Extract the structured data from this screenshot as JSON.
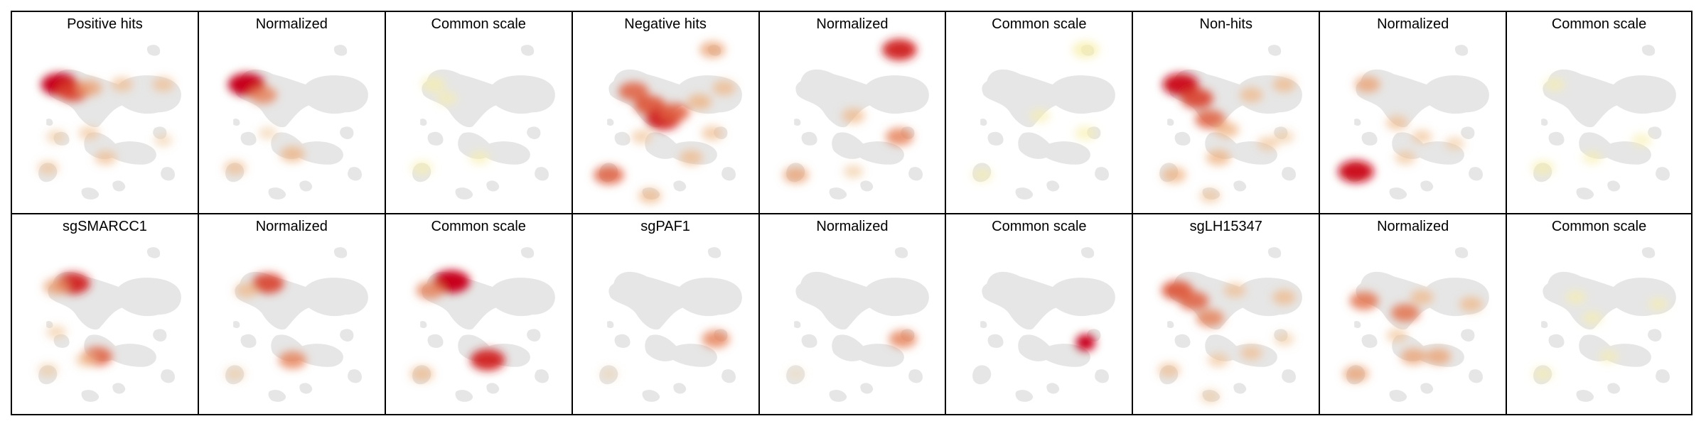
{
  "chart_data": {
    "type": "heatmap",
    "description_rows": 2,
    "description_cols": 9,
    "colors": {
      "background_cells": "#e6e6e6",
      "low": "#f3e6c8",
      "mid": "#eba47a",
      "high": "#c8001a",
      "light_yellow": "#f7eeaa"
    },
    "panels": [
      {
        "title": "Positive hits",
        "blobs": [
          [
            0.22,
            0.3,
            1.0
          ],
          [
            0.3,
            0.34,
            0.8
          ],
          [
            0.4,
            0.32,
            0.5
          ],
          [
            0.6,
            0.3,
            0.35
          ],
          [
            0.85,
            0.3,
            0.35
          ],
          [
            0.2,
            0.6,
            0.25
          ],
          [
            0.4,
            0.58,
            0.3
          ],
          [
            0.15,
            0.78,
            0.3
          ],
          [
            0.5,
            0.72,
            0.35
          ],
          [
            0.85,
            0.62,
            0.2
          ]
        ]
      },
      {
        "title": "Normalized",
        "blobs": [
          [
            0.22,
            0.3,
            1.0
          ],
          [
            0.32,
            0.36,
            0.6
          ],
          [
            0.5,
            0.7,
            0.45
          ],
          [
            0.15,
            0.78,
            0.35
          ],
          [
            0.35,
            0.58,
            0.2
          ]
        ]
      },
      {
        "title": "Common scale",
        "blobs": [
          [
            0.22,
            0.3,
            0.35,
            "y"
          ],
          [
            0.3,
            0.38,
            0.2,
            "y"
          ],
          [
            0.15,
            0.78,
            0.25,
            "y"
          ],
          [
            0.5,
            0.72,
            0.2,
            "y"
          ]
        ]
      },
      {
        "title": "Negative hits",
        "blobs": [
          [
            0.78,
            0.1,
            0.5
          ],
          [
            0.3,
            0.34,
            0.7
          ],
          [
            0.4,
            0.42,
            0.75
          ],
          [
            0.48,
            0.5,
            0.9
          ],
          [
            0.55,
            0.46,
            0.7
          ],
          [
            0.7,
            0.4,
            0.45
          ],
          [
            0.85,
            0.32,
            0.4
          ],
          [
            0.15,
            0.82,
            0.7
          ],
          [
            0.35,
            0.6,
            0.3
          ],
          [
            0.65,
            0.72,
            0.4
          ],
          [
            0.4,
            0.94,
            0.4
          ],
          [
            0.78,
            0.58,
            0.35
          ]
        ]
      },
      {
        "title": "Normalized",
        "blobs": [
          [
            0.78,
            0.1,
            0.9
          ],
          [
            0.5,
            0.48,
            0.4
          ],
          [
            0.78,
            0.6,
            0.6
          ],
          [
            0.15,
            0.82,
            0.5
          ],
          [
            0.5,
            0.8,
            0.25
          ]
        ]
      },
      {
        "title": "Common scale",
        "blobs": [
          [
            0.78,
            0.1,
            0.5,
            "y"
          ],
          [
            0.5,
            0.48,
            0.2,
            "y"
          ],
          [
            0.78,
            0.58,
            0.25,
            "y"
          ],
          [
            0.15,
            0.82,
            0.2,
            "y"
          ]
        ]
      },
      {
        "title": "Non-hits",
        "blobs": [
          [
            0.22,
            0.3,
            0.95
          ],
          [
            0.32,
            0.38,
            0.8
          ],
          [
            0.4,
            0.5,
            0.7
          ],
          [
            0.5,
            0.56,
            0.45
          ],
          [
            0.65,
            0.36,
            0.4
          ],
          [
            0.85,
            0.3,
            0.4
          ],
          [
            0.18,
            0.82,
            0.45
          ],
          [
            0.45,
            0.72,
            0.45
          ],
          [
            0.75,
            0.64,
            0.3
          ],
          [
            0.4,
            0.94,
            0.3
          ],
          [
            0.85,
            0.6,
            0.25
          ]
        ]
      },
      {
        "title": "Normalized",
        "blobs": [
          [
            0.15,
            0.8,
            0.95
          ],
          [
            0.22,
            0.3,
            0.5
          ],
          [
            0.4,
            0.52,
            0.35
          ],
          [
            0.55,
            0.6,
            0.3
          ],
          [
            0.45,
            0.72,
            0.3
          ],
          [
            0.75,
            0.64,
            0.25
          ]
        ]
      },
      {
        "title": "Common scale",
        "blobs": [
          [
            0.15,
            0.78,
            0.3,
            "y"
          ],
          [
            0.22,
            0.3,
            0.2,
            "y"
          ],
          [
            0.45,
            0.72,
            0.15,
            "y"
          ],
          [
            0.75,
            0.62,
            0.15,
            "y"
          ]
        ]
      },
      {
        "title": "sgSMARCC1",
        "blobs": [
          [
            0.3,
            0.28,
            0.9
          ],
          [
            0.2,
            0.3,
            0.5
          ],
          [
            0.45,
            0.7,
            0.7
          ],
          [
            0.15,
            0.78,
            0.25
          ],
          [
            0.38,
            0.72,
            0.3
          ],
          [
            0.2,
            0.56,
            0.25
          ]
        ]
      },
      {
        "title": "Normalized",
        "blobs": [
          [
            0.35,
            0.28,
            0.8
          ],
          [
            0.22,
            0.32,
            0.4
          ],
          [
            0.5,
            0.72,
            0.6
          ],
          [
            0.15,
            0.8,
            0.25
          ]
        ]
      },
      {
        "title": "Common scale",
        "blobs": [
          [
            0.33,
            0.27,
            1.0
          ],
          [
            0.2,
            0.32,
            0.6
          ],
          [
            0.55,
            0.72,
            0.9
          ],
          [
            0.15,
            0.8,
            0.4
          ]
        ]
      },
      {
        "title": "sgPAF1",
        "blobs": [
          [
            0.8,
            0.6,
            0.6
          ],
          [
            0.15,
            0.8,
            0.15
          ]
        ]
      },
      {
        "title": "Normalized",
        "blobs": [
          [
            0.8,
            0.6,
            0.6
          ],
          [
            0.15,
            0.8,
            0.1
          ]
        ]
      },
      {
        "title": "Common scale",
        "blobs": [
          [
            0.78,
            0.62,
            1.0,
            "big"
          ]
        ]
      },
      {
        "title": "sgLH15347",
        "blobs": [
          [
            0.2,
            0.32,
            0.75
          ],
          [
            0.3,
            0.38,
            0.7
          ],
          [
            0.4,
            0.48,
            0.6
          ],
          [
            0.55,
            0.32,
            0.35
          ],
          [
            0.85,
            0.36,
            0.4
          ],
          [
            0.15,
            0.78,
            0.35
          ],
          [
            0.45,
            0.72,
            0.3
          ],
          [
            0.65,
            0.68,
            0.35
          ],
          [
            0.85,
            0.6,
            0.25
          ],
          [
            0.4,
            0.93,
            0.25
          ]
        ]
      },
      {
        "title": "Normalized",
        "blobs": [
          [
            0.2,
            0.38,
            0.65
          ],
          [
            0.45,
            0.45,
            0.65
          ],
          [
            0.55,
            0.36,
            0.4
          ],
          [
            0.85,
            0.4,
            0.4
          ],
          [
            0.15,
            0.8,
            0.5
          ],
          [
            0.5,
            0.7,
            0.5
          ],
          [
            0.65,
            0.7,
            0.5
          ],
          [
            0.4,
            0.58,
            0.3
          ]
        ]
      },
      {
        "title": "Common scale",
        "blobs": [
          [
            0.35,
            0.36,
            0.2,
            "y"
          ],
          [
            0.45,
            0.48,
            0.2,
            "y"
          ],
          [
            0.85,
            0.4,
            0.15,
            "y"
          ],
          [
            0.15,
            0.8,
            0.2,
            "y"
          ],
          [
            0.55,
            0.7,
            0.15,
            "y"
          ]
        ]
      }
    ]
  }
}
